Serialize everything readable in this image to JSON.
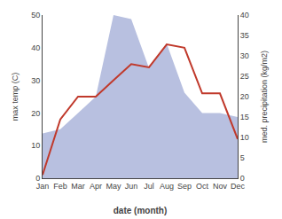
{
  "chart_data": {
    "type": "line",
    "categories": [
      "Jan",
      "Feb",
      "Mar",
      "Apr",
      "May",
      "Jun",
      "Jul",
      "Aug",
      "Sep",
      "Oct",
      "Nov",
      "Dec"
    ],
    "xlabel": "date (month)",
    "ylabel": "max temp (C)",
    "y2label": "med. precipitation (kg/m2)",
    "ylim": [
      0,
      50
    ],
    "yticks": [
      0,
      10,
      20,
      30,
      40,
      50
    ],
    "y2lim": [
      0,
      40
    ],
    "y2ticks": [
      0,
      5,
      10,
      15,
      20,
      25,
      30,
      35,
      40
    ],
    "grid": false,
    "series": [
      {
        "type": "area",
        "color": "#b8c0e0",
        "axis": "y2",
        "values": [
          11,
          12,
          16,
          20,
          40,
          39,
          27,
          33,
          21,
          16,
          16,
          15
        ]
      },
      {
        "type": "line",
        "color": "#c0392b",
        "values": [
          1,
          18,
          25,
          25,
          30,
          35,
          34,
          41,
          40,
          26,
          26,
          12
        ]
      }
    ]
  }
}
